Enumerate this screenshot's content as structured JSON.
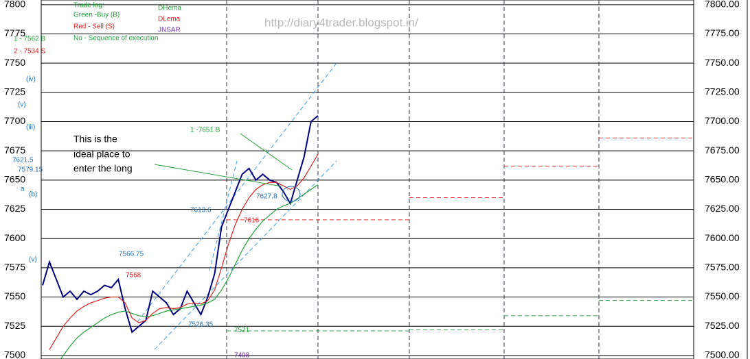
{
  "chart_data": {
    "type": "line",
    "ylim": [
      7497,
      7804
    ],
    "yticks": [
      7500,
      7525,
      7550,
      7575,
      7600,
      7625,
      7650,
      7675,
      7700,
      7725,
      7750,
      7775,
      7800
    ],
    "y2lim": [
      7497,
      7804
    ],
    "y2ticks": [
      {
        "value": 7500,
        "label": "7500.00"
      },
      {
        "value": 7525,
        "label": "7525.00"
      },
      {
        "value": 7550,
        "label": "7550.00"
      },
      {
        "value": 7575,
        "label": "7575.00"
      },
      {
        "value": 7600,
        "label": "7600.00"
      },
      {
        "value": 7625,
        "label": "7625.00"
      },
      {
        "value": 7650,
        "label": "7650.00"
      },
      {
        "value": 7675,
        "label": "7675.00"
      },
      {
        "value": 7700,
        "label": "7700.00"
      },
      {
        "value": 7725,
        "label": "7725.00"
      },
      {
        "value": 7750,
        "label": "7750.00"
      },
      {
        "value": 7775,
        "label": "7775.00"
      },
      {
        "value": 7800,
        "label": "7800.00"
      }
    ],
    "grid": true,
    "xlim": [
      0,
      94.8
    ],
    "x": [
      0,
      1,
      2,
      3,
      4,
      5,
      6,
      7,
      8,
      9,
      10,
      11,
      12,
      13,
      14,
      15,
      16,
      17,
      18,
      19,
      20,
      21,
      22,
      23,
      24,
      25,
      26,
      27,
      28,
      29,
      30,
      31,
      32,
      33,
      34,
      35,
      36,
      37,
      38,
      39,
      40
    ],
    "series": [
      {
        "color": "#000080",
        "values": [
          7560,
          7580,
          7565,
          7550,
          7555,
          7548,
          7555,
          7552,
          7555,
          7560,
          7558,
          7565,
          7540,
          7520,
          7525,
          7530,
          7555,
          7550,
          7545,
          7535,
          7540,
          7555,
          7545,
          7535,
          7550,
          7570,
          7610,
          7625,
          7640,
          7655,
          7660,
          7650,
          7655,
          7650,
          7648,
          7640,
          7630,
          7650,
          7670,
          7700,
          7705
        ]
      },
      {
        "name": "DHema",
        "color": "#22a03a",
        "values": [
          null,
          null,
          7492,
          7500,
          7508,
          7515,
          7520,
          7524,
          7528,
          7532,
          7535,
          7537,
          7538,
          7536,
          7534,
          7533,
          7534,
          7536,
          7538,
          7539,
          7540,
          7541,
          7542,
          7543,
          7545,
          7548,
          7556,
          7566,
          7578,
          7590,
          7600,
          7608,
          7615,
          7620,
          7625,
          7628,
          7630,
          7634,
          7638,
          7642,
          7646
        ]
      },
      {
        "name": "DLema",
        "color": "#d82020",
        "values": [
          null,
          7505,
          7515,
          7525,
          7532,
          7538,
          7542,
          7545,
          7547,
          7549,
          7550,
          7550,
          7545,
          7532,
          7528,
          7530,
          7536,
          7540,
          7541,
          7540,
          7541,
          7544,
          7545,
          7544,
          7547,
          7556,
          7575,
          7595,
          7612,
          7625,
          7635,
          7642,
          7646,
          7648,
          7648,
          7645,
          7642,
          7645,
          7652,
          7662,
          7672
        ]
      }
    ],
    "legend_extra": "JNSAR",
    "sell_levels": [
      7616,
      7635,
      7662,
      7686
    ],
    "buy_levels": [
      7521,
      7522,
      7534,
      7547
    ],
    "watermark": "http://diary4trader.blogspot.in/",
    "trade_log": [
      "Trade log:",
      "Green -Buy (B)",
      "Red - Sell (S)",
      "No - Sequence of execution"
    ],
    "annotations": {
      "t1": "1 - 7562 B",
      "t2": "2 - 7534 S",
      "t3": "1 -7651 B",
      "note": [
        "This is the",
        "ideal place to",
        "enter the long"
      ],
      "p1": "7613.6",
      "p2": "7616",
      "p3": "7627.8",
      "p4": "7566.75",
      "p5": "7568",
      "p6": "7526.35",
      "p7": "7521",
      "p8": "7498",
      "w1": "(iv)",
      "w2": "(v)",
      "w3": "(iii)",
      "w4": "7621.5",
      "w5": "7579.15",
      "w6": "(b)",
      "w7": "a",
      "w8": "(v)"
    }
  }
}
